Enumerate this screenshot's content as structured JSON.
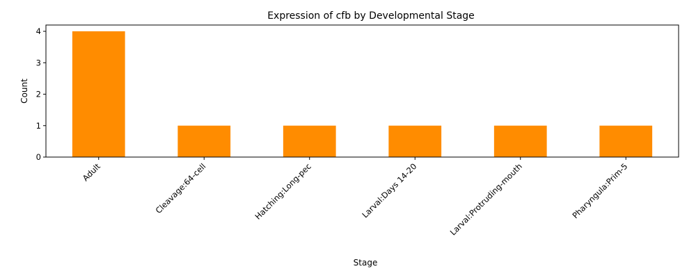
{
  "chart_data": {
    "type": "bar",
    "title": "Expression of cfb by Developmental Stage",
    "xlabel": "Stage",
    "ylabel": "Count",
    "categories": [
      "Adult",
      "Cleavage:64-cell",
      "Hatching:Long-pec",
      "Larval:Days 14-20",
      "Larval:Protruding-mouth",
      "Pharyngula:Prim-5"
    ],
    "values": [
      4,
      1,
      1,
      1,
      1,
      1
    ],
    "ylim": [
      0,
      4.2
    ],
    "yticks": [
      0,
      1,
      2,
      3,
      4
    ],
    "bar_color": "#ff8c00",
    "grid": false,
    "legend": false
  }
}
